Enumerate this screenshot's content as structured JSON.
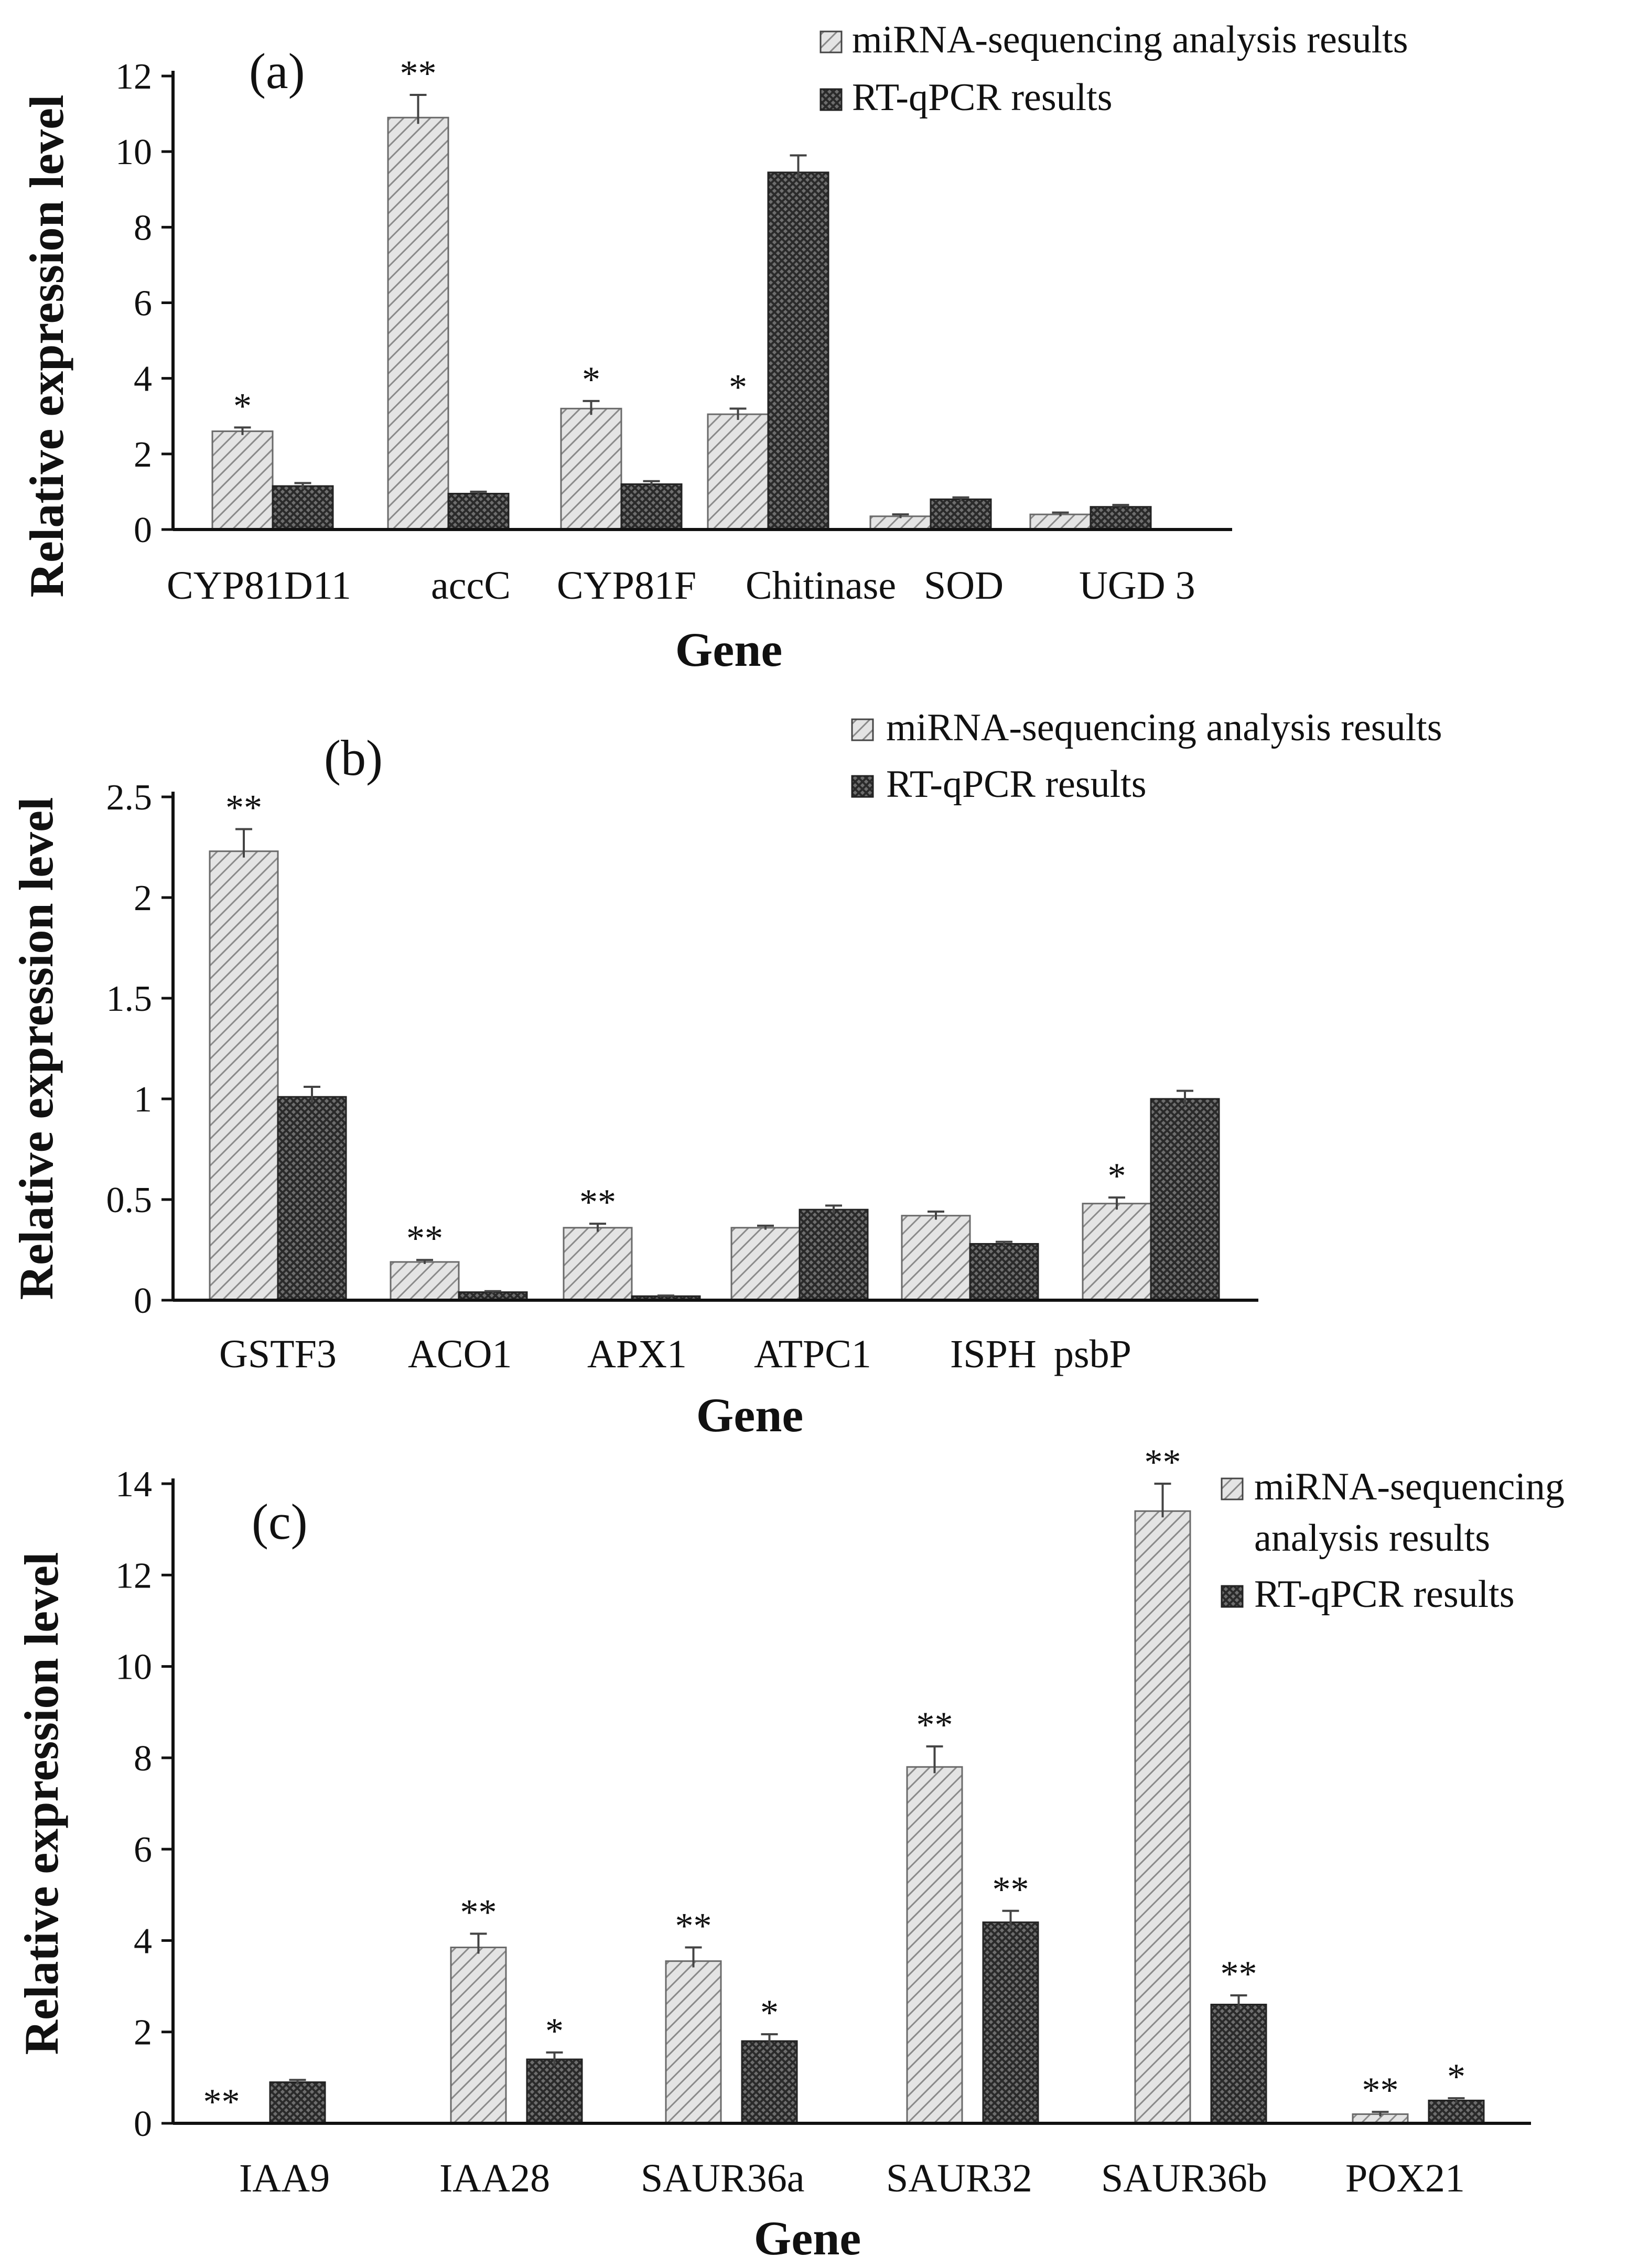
{
  "figure": {
    "legend": {
      "series1": "miRNA-sequencing analysis results",
      "series2": "RT-qPCR results",
      "series1_line1": "miRNA-sequencing",
      "series1_line2": "analysis results"
    },
    "colors": {
      "series1": "#d9d9d9",
      "series2": "#555555",
      "axis": "#111111"
    }
  },
  "chart_data": [
    {
      "type": "bar",
      "panel": "(a)",
      "title": "",
      "xlabel": "Gene",
      "ylabel": "Relative expression level",
      "ylim": [
        0,
        12
      ],
      "yticks": [
        "0",
        "2",
        "4",
        "6",
        "8",
        "10",
        "12"
      ],
      "categories": [
        "CYP81D11",
        "accC",
        "CYP81F",
        "Chitinase",
        "SOD",
        "UGD 3"
      ],
      "series": [
        {
          "name": "miRNA-sequencing analysis results",
          "values": [
            2.6,
            10.9,
            3.2,
            3.05,
            0.35,
            0.4
          ],
          "errors": [
            0.1,
            0.6,
            0.2,
            0.15,
            0.05,
            0.05
          ],
          "stars": [
            "*",
            "**",
            "*",
            "*",
            "",
            ""
          ]
        },
        {
          "name": "RT-qPCR results",
          "values": [
            1.15,
            0.95,
            1.2,
            9.45,
            0.8,
            0.6
          ],
          "errors": [
            0.08,
            0.05,
            0.08,
            0.45,
            0.05,
            0.05
          ],
          "stars": [
            "",
            "",
            "",
            "",
            "",
            ""
          ]
        }
      ]
    },
    {
      "type": "bar",
      "panel": "(b)",
      "title": "",
      "xlabel": "Gene",
      "ylabel": "Relative expression level",
      "ylim": [
        0,
        2.5
      ],
      "yticks": [
        "0",
        "0.5",
        "1",
        "1.5",
        "2",
        "2.5"
      ],
      "categories": [
        "GSTF3",
        "ACO1",
        "APX1",
        "ATPC1",
        "ISPH",
        "psbP"
      ],
      "series": [
        {
          "name": "miRNA-sequencing analysis results",
          "values": [
            2.23,
            0.19,
            0.36,
            0.36,
            0.42,
            0.48
          ],
          "errors": [
            0.11,
            0.01,
            0.02,
            0.01,
            0.02,
            0.03
          ],
          "stars": [
            "**",
            "**",
            "**",
            "",
            "",
            "*"
          ]
        },
        {
          "name": "RT-qPCR results",
          "values": [
            1.01,
            0.04,
            0.02,
            0.45,
            0.28,
            1.0
          ],
          "errors": [
            0.05,
            0.005,
            0.003,
            0.02,
            0.01,
            0.04
          ],
          "stars": [
            "",
            "",
            "",
            "",
            "",
            ""
          ]
        }
      ]
    },
    {
      "type": "bar",
      "panel": "(c)",
      "title": "",
      "xlabel": "Gene",
      "ylabel": "Relative expression level",
      "ylim": [
        0,
        14
      ],
      "yticks": [
        "0",
        "2",
        "4",
        "6",
        "8",
        "10",
        "12",
        "14"
      ],
      "categories": [
        "IAA9",
        "IAA28",
        "SAUR36a",
        "SAUR32",
        "SAUR36b",
        "POX21"
      ],
      "series": [
        {
          "name": "miRNA-sequencing analysis results",
          "values": [
            0.0,
            3.85,
            3.55,
            7.8,
            13.4,
            0.2
          ],
          "errors": [
            0,
            0.3,
            0.3,
            0.45,
            0.6,
            0.05
          ],
          "stars": [
            "**",
            "**",
            "**",
            "**",
            "**",
            "**"
          ]
        },
        {
          "name": "RT-qPCR results",
          "values": [
            0.9,
            1.4,
            1.8,
            4.4,
            2.6,
            0.5
          ],
          "errors": [
            0.05,
            0.15,
            0.15,
            0.25,
            0.2,
            0.05
          ],
          "stars": [
            "",
            "*",
            "*",
            "**",
            "**",
            "*"
          ]
        }
      ]
    }
  ]
}
